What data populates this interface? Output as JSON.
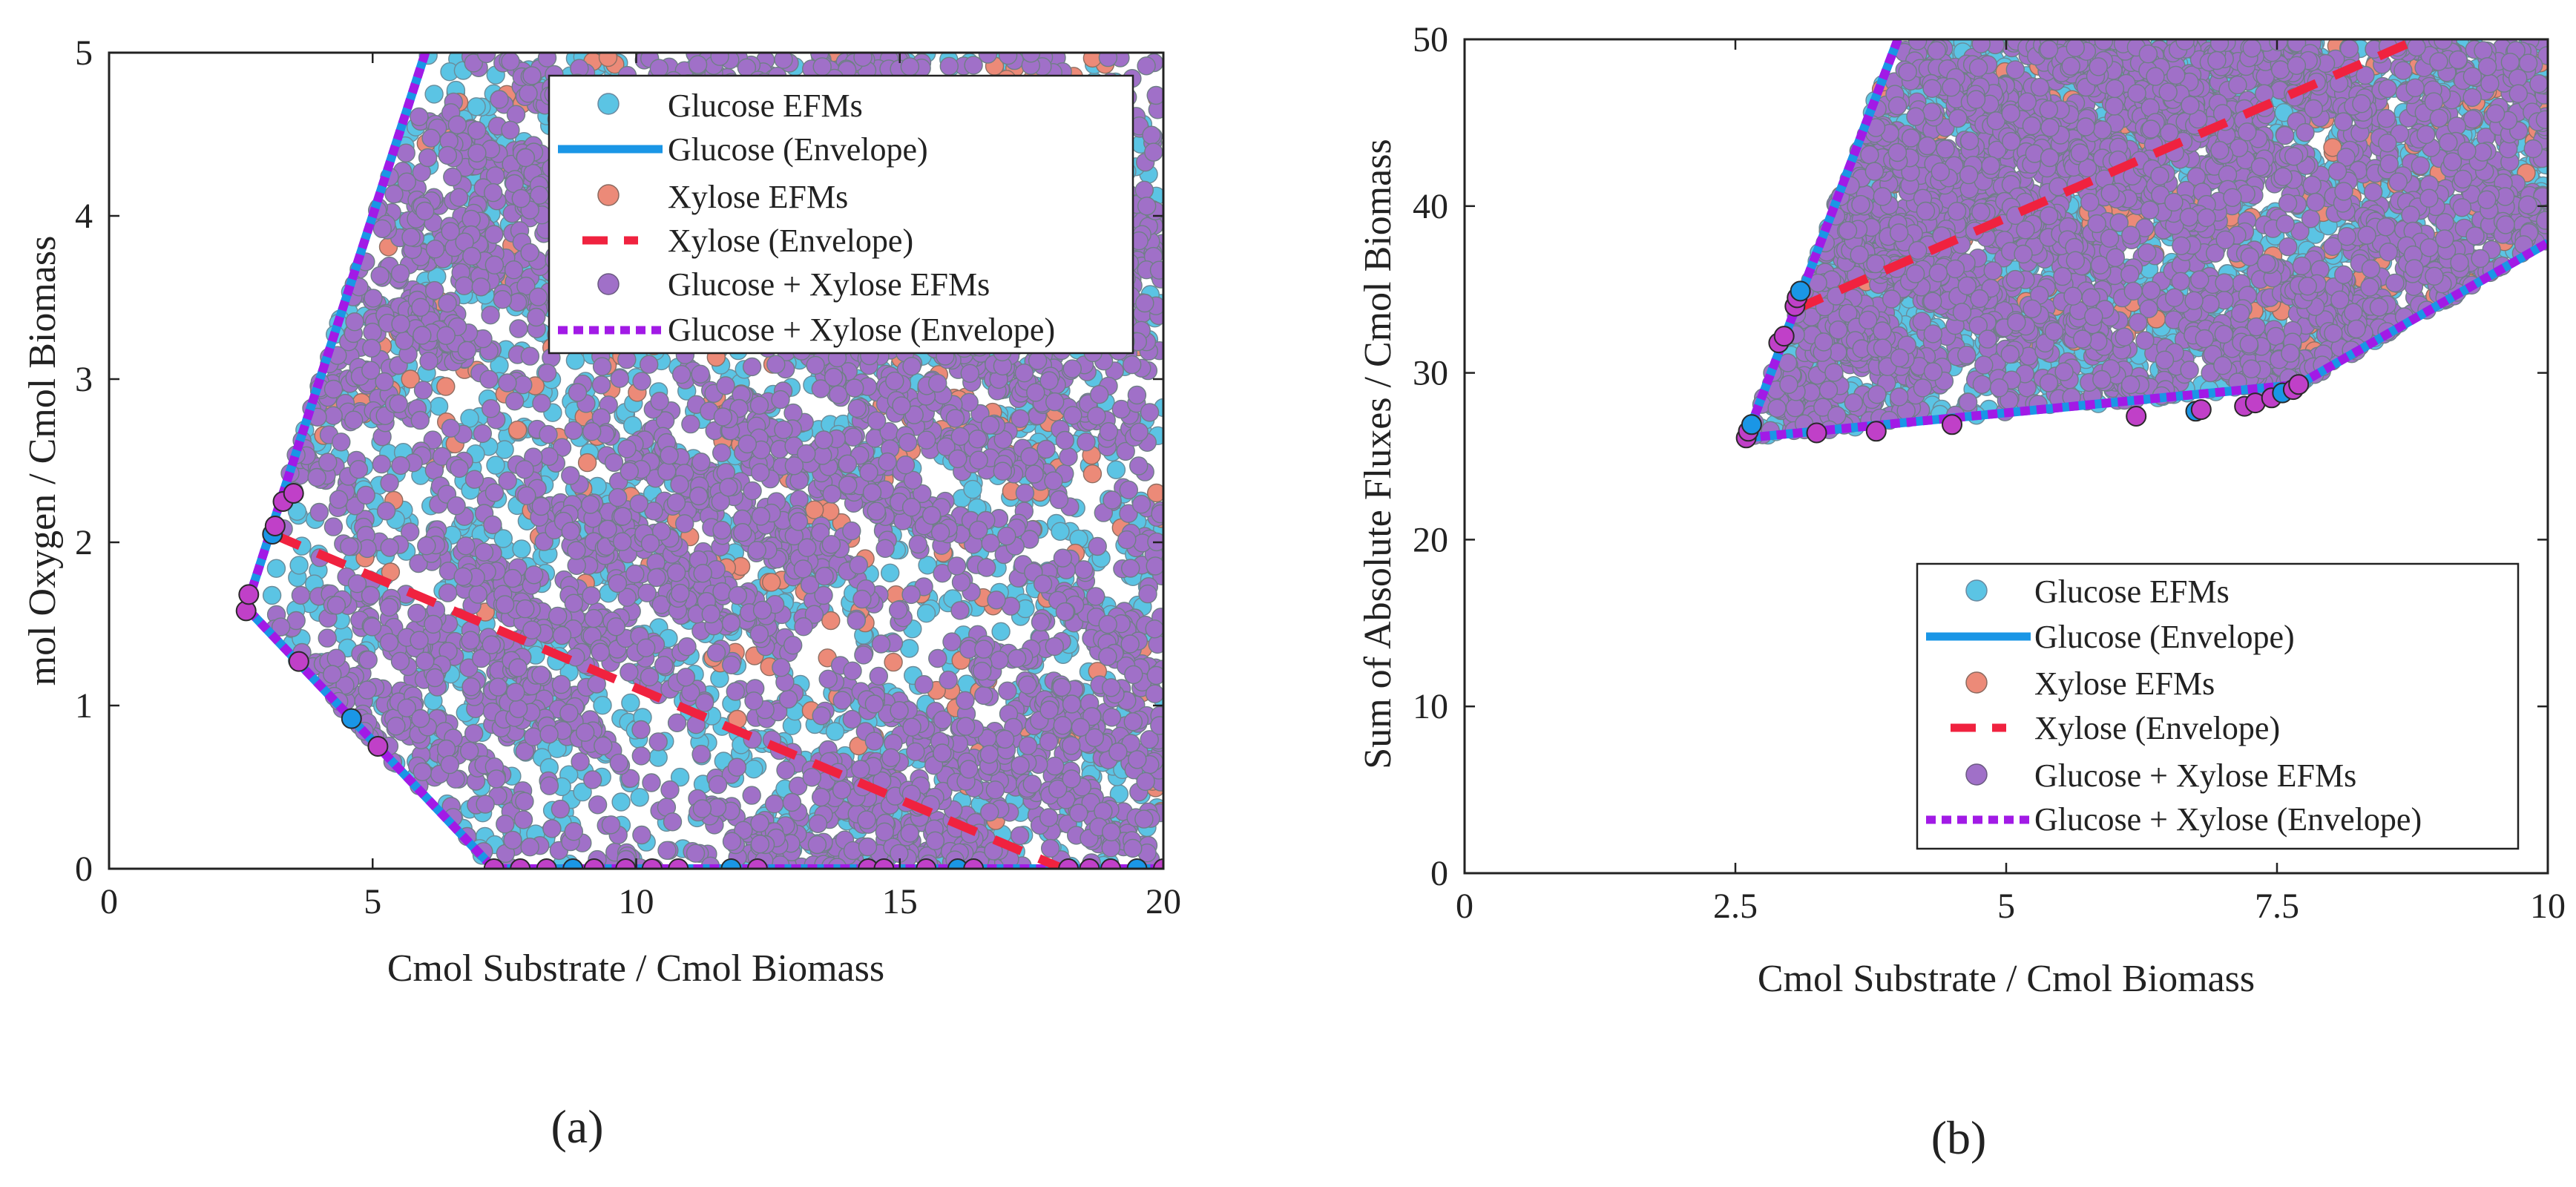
{
  "colors": {
    "glucose_point": "#5bc4e4",
    "glucose_line": "#1a96e6",
    "xylose_point": "#ec8a78",
    "xylose_line": "#f0223f",
    "mixed_point": "#a070c8",
    "mixed_line": "#a21ae6",
    "vertex_point": "#c040c8"
  },
  "chart_data": [
    {
      "type": "scatter",
      "panel_label": "(a)",
      "xlabel": "Cmol Substrate / Cmol Biomass",
      "ylabel": "mol Oxygen / Cmol Biomass",
      "xlim": [
        0,
        20
      ],
      "ylim": [
        0,
        5
      ],
      "xticks": [
        0,
        5,
        10,
        15,
        20
      ],
      "xtick_labels": [
        "0",
        "5",
        "10",
        "15",
        "20"
      ],
      "yticks": [
        0,
        1,
        2,
        3,
        4,
        5
      ],
      "ytick_labels": [
        "0",
        "1",
        "2",
        "3",
        "4",
        "5"
      ],
      "legend_position": "top-right",
      "legend": [
        "Glucose EFMs",
        "Glucose (Envelope)",
        "Xylose EFMs",
        "Xylose (Envelope)",
        "Glucose + Xylose EFMs",
        "Glucose + Xylose (Envelope)"
      ],
      "series": [
        {
          "name": "Glucose (Envelope)",
          "kind": "envelope",
          "x": [
            6.0,
            2.6,
            7.3,
            20
          ],
          "y": [
            5.0,
            1.6,
            0,
            0
          ]
        },
        {
          "name": "Glucose + Xylose (Envelope)",
          "kind": "envelope",
          "x": [
            6.0,
            2.6,
            7.3,
            20
          ],
          "y": [
            5.0,
            1.6,
            0,
            0
          ]
        },
        {
          "name": "Xylose (Envelope)",
          "kind": "envelope",
          "x": [
            3.1,
            18.1
          ],
          "y": [
            2.05,
            0
          ]
        },
        {
          "name": "Glucose EFMs",
          "kind": "region",
          "x": [
            2.6,
            6.0,
            20,
            20,
            7.3
          ],
          "y": [
            1.6,
            5.0,
            5.0,
            0,
            0
          ]
        },
        {
          "name": "Xylose EFMs",
          "kind": "region",
          "x": [
            3.1,
            6.3,
            20,
            20,
            18.1
          ],
          "y": [
            2.05,
            5.0,
            5.0,
            0,
            0
          ]
        },
        {
          "name": "Glucose + Xylose EFMs",
          "kind": "region",
          "x": [
            2.6,
            6.0,
            20,
            20,
            7.3
          ],
          "y": [
            1.6,
            5.0,
            5.0,
            0,
            0
          ]
        }
      ],
      "envelope_vertices": {
        "x": [
          2.6,
          2.65,
          3.1,
          3.15,
          3.3,
          3.5,
          3.6,
          4.6,
          5.1,
          7.3,
          7.8,
          8.3,
          8.8,
          9.2,
          9.8,
          10.3,
          10.8,
          11.8,
          12.3,
          14.4,
          14.7,
          15.5,
          16.1,
          16.4,
          18.2,
          18.6,
          19.0,
          19.5,
          20.0
        ],
        "y": [
          1.58,
          1.68,
          2.05,
          2.1,
          2.25,
          2.3,
          1.27,
          0.92,
          0.75,
          0,
          0,
          0,
          0,
          0,
          0,
          0,
          0,
          0,
          0,
          0,
          0,
          0,
          0,
          0,
          0,
          0,
          0,
          0,
          0
        ]
      }
    },
    {
      "type": "scatter",
      "panel_label": "(b)",
      "xlabel": "Cmol Substrate / Cmol Biomass",
      "ylabel": "Sum of Absolute Fluxes / Cmol Biomass",
      "xlim": [
        0,
        10
      ],
      "ylim": [
        0,
        50
      ],
      "xticks": [
        0,
        2.5,
        5,
        7.5,
        10
      ],
      "xtick_labels": [
        "0",
        "2.5",
        "5",
        "7.5",
        "10"
      ],
      "yticks": [
        0,
        10,
        20,
        30,
        40,
        50
      ],
      "ytick_labels": [
        "0",
        "10",
        "20",
        "30",
        "40",
        "50"
      ],
      "legend_position": "bottom-right",
      "legend": [
        "Glucose EFMs",
        "Glucose (Envelope)",
        "Xylose EFMs",
        "Xylose (Envelope)",
        "Glucose + Xylose EFMs",
        "Glucose + Xylose (Envelope)"
      ],
      "series": [
        {
          "name": "Glucose (Envelope)",
          "kind": "envelope",
          "x": [
            4.0,
            2.6,
            7.7,
            10
          ],
          "y": [
            50,
            26.1,
            29.3,
            37.8
          ]
        },
        {
          "name": "Glucose + Xylose (Envelope)",
          "kind": "envelope",
          "x": [
            4.0,
            2.6,
            7.7,
            10
          ],
          "y": [
            50,
            26.1,
            29.3,
            37.8
          ]
        },
        {
          "name": "Xylose (Envelope)",
          "kind": "envelope",
          "x": [
            3.05,
            8.8
          ],
          "y": [
            33.8,
            50
          ]
        },
        {
          "name": "Glucose EFMs",
          "kind": "region",
          "x": [
            2.6,
            4.0,
            10,
            10,
            7.7
          ],
          "y": [
            26.1,
            50,
            50,
            37.8,
            29.3
          ]
        },
        {
          "name": "Xylose EFMs",
          "kind": "region",
          "x": [
            3.05,
            4.0,
            10,
            10,
            7.7
          ],
          "y": [
            33.8,
            50,
            50,
            37.8,
            29.3
          ]
        },
        {
          "name": "Glucose + Xylose EFMs",
          "kind": "region",
          "x": [
            2.6,
            4.0,
            10,
            10,
            7.7
          ],
          "y": [
            26.1,
            50,
            50,
            37.8,
            29.3
          ]
        }
      ],
      "envelope_vertices": {
        "x": [
          2.6,
          2.62,
          2.65,
          2.9,
          2.95,
          3.05,
          3.07,
          3.1,
          3.25,
          3.8,
          4.5,
          6.2,
          6.75,
          6.8,
          7.2,
          7.3,
          7.45,
          7.55,
          7.65,
          7.7
        ],
        "y": [
          26.1,
          26.5,
          26.9,
          31.8,
          32.2,
          34.0,
          34.5,
          34.9,
          26.4,
          26.5,
          26.9,
          27.4,
          27.7,
          27.8,
          28.0,
          28.2,
          28.5,
          28.8,
          29.0,
          29.3
        ]
      }
    }
  ]
}
